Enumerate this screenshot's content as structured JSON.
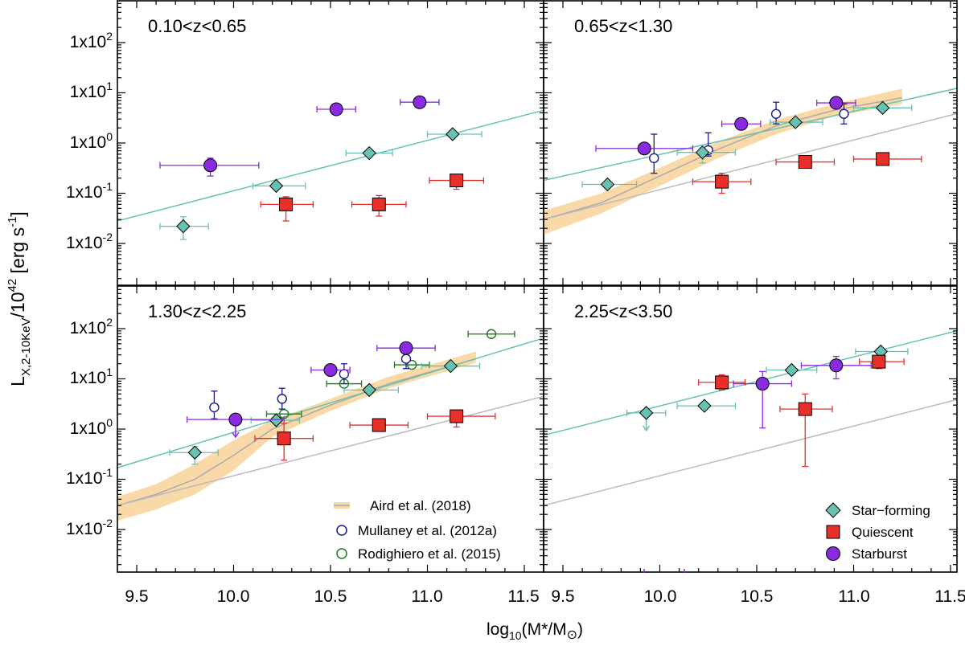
{
  "axes": {
    "xlabel_main": "log",
    "xlabel_sub": "10",
    "xlabel_rest": "(M",
    "xlabel_star": "*",
    "xlabel_slash": "/M",
    "xlabel_sun": "⊙",
    "xlabel_close": ")",
    "ylabel_L": "L",
    "ylabel_sub": "X,2-10KeV",
    "ylabel_mid": "/10",
    "ylabel_exp": "42",
    "ylabel_units": " [erg s",
    "ylabel_units_exp": "-1",
    "ylabel_close": "]",
    "x_ticks_left": [
      "9.5",
      "10.0",
      "10.5",
      "11.0",
      "11.5"
    ],
    "x_ticks_right": [
      "9.5",
      "10.0",
      "10.5",
      "11.0",
      "11.5"
    ],
    "y_ticks": [
      {
        "mant": "1x10",
        "exp": "-2"
      },
      {
        "mant": "1x10",
        "exp": "-1"
      },
      {
        "mant": "1x10",
        "exp": "0"
      },
      {
        "mant": "1x10",
        "exp": "1"
      },
      {
        "mant": "1x10",
        "exp": "2"
      }
    ]
  },
  "legend_left": {
    "aird": "Aird et al. (2018)",
    "mullaney": "Mullaney et al. (2012a)",
    "rodighiero": "Rodighiero et al. (2015)"
  },
  "legend_right": {
    "sf": "Star−forming",
    "q": "Quiescent",
    "sb": "Starburst"
  },
  "colors": {
    "star_forming": "#66c2b3",
    "quiescent": "#e8302a",
    "starburst": "#8a2be2",
    "mullaney": "#1a1a8c",
    "rodighiero": "#1e7a1e",
    "aird_band": "#fad9a8",
    "aird_line": "#aaaaaa",
    "ms_line": "#66c2b3",
    "gray_line": "#bbbbbb"
  },
  "chart_data": [
    {
      "type": "scatter",
      "title": "0.10<z<0.65",
      "xlim": [
        9.4,
        11.6
      ],
      "ylog10_lim": [
        -2.8,
        2.95
      ],
      "star_forming": [
        {
          "x": 9.74,
          "y": 0.022,
          "xerr": [
            0.12,
            0.13
          ],
          "ylo": 0.012,
          "yhi": 0.034
        },
        {
          "x": 10.22,
          "y": 0.14,
          "xerr": [
            0.12,
            0.15
          ]
        },
        {
          "x": 10.7,
          "y": 0.63,
          "xerr": [
            0.12,
            0.12
          ]
        },
        {
          "x": 11.13,
          "y": 1.5,
          "xerr": [
            0.13,
            0.15
          ]
        }
      ],
      "quiescent": [
        {
          "x": 10.27,
          "y": 0.06,
          "xerr": [
            0.13,
            0.14
          ],
          "ylo": 0.028,
          "yhi": 0.085
        },
        {
          "x": 10.75,
          "y": 0.06,
          "xerr": [
            0.14,
            0.14
          ],
          "ylo": 0.035,
          "yhi": 0.09
        },
        {
          "x": 11.15,
          "y": 0.18,
          "xerr": [
            0.14,
            0.14
          ],
          "ylo": 0.12,
          "yhi": 0.2
        }
      ],
      "starburst": [
        {
          "x": 9.88,
          "y": 0.36,
          "xerr": [
            0.26,
            0.25
          ],
          "ylo": 0.22,
          "yhi": 0.5
        },
        {
          "x": 10.53,
          "y": 4.7,
          "xerr": [
            0.1,
            0.1
          ]
        },
        {
          "x": 10.96,
          "y": 6.5,
          "xerr": [
            0.1,
            0.1
          ]
        }
      ],
      "ms_line": {
        "x": [
          9.4,
          11.6
        ],
        "y": [
          0.028,
          4.5
        ]
      }
    },
    {
      "type": "scatter",
      "title": "0.65<z<1.30",
      "xlim": [
        9.4,
        11.6
      ],
      "ylog10_lim": [
        -2.8,
        2.95
      ],
      "star_forming": [
        {
          "x": 9.73,
          "y": 0.15,
          "xerr": [
            0.13,
            0.15
          ]
        },
        {
          "x": 10.22,
          "y": 0.65,
          "xerr": [
            0.13,
            0.17
          ],
          "ylo": 0.4,
          "yhi": 0.8
        },
        {
          "x": 10.7,
          "y": 2.6,
          "xerr": [
            0.13,
            0.14
          ]
        },
        {
          "x": 11.15,
          "y": 5.0,
          "xerr": [
            0.15,
            0.15
          ]
        }
      ],
      "quiescent": [
        {
          "x": 10.32,
          "y": 0.17,
          "xerr": [
            0.15,
            0.15
          ],
          "ylo": 0.1,
          "yhi": 0.25
        },
        {
          "x": 10.75,
          "y": 0.42,
          "xerr": [
            0.15,
            0.15
          ]
        },
        {
          "x": 11.15,
          "y": 0.48,
          "xerr": [
            0.15,
            0.2
          ],
          "ylo": 0.38,
          "yhi": 0.52
        }
      ],
      "starburst": [
        {
          "x": 9.92,
          "y": 0.78,
          "xerr": [
            0.25,
            0.25
          ]
        },
        {
          "x": 10.42,
          "y": 2.4,
          "xerr": [
            0.1,
            0.1
          ]
        },
        {
          "x": 10.91,
          "y": 6.3,
          "xerr": [
            0.1,
            0.1
          ]
        }
      ],
      "mullaney": [
        {
          "x": 9.97,
          "y": 0.5,
          "ylo": 0.25,
          "yhi": 1.5
        },
        {
          "x": 10.25,
          "y": 0.72,
          "ylo": 0.55,
          "yhi": 1.6
        },
        {
          "x": 10.6,
          "y": 3.8,
          "ylo": 2.4,
          "yhi": 6.5
        },
        {
          "x": 10.95,
          "y": 3.8,
          "ylo": 2.4,
          "yhi": 6.0
        }
      ],
      "aird_line": {
        "x": [
          9.4,
          9.7,
          10.0,
          10.3,
          10.6,
          10.9,
          11.25
        ],
        "y": [
          0.03,
          0.065,
          0.22,
          0.75,
          2.2,
          4.5,
          8.0
        ]
      },
      "aird_band_lo": [
        0.015,
        0.04,
        0.14,
        0.5,
        1.5,
        3.4,
        6.0
      ],
      "aird_band_hi": [
        0.045,
        0.1,
        0.32,
        1.05,
        2.9,
        6.0,
        12.0
      ],
      "ms_line": {
        "x": [
          9.4,
          11.6
        ],
        "y": [
          0.18,
          14.0
        ]
      },
      "gray_line": {
        "x": [
          9.4,
          11.6
        ],
        "y": [
          0.03,
          4.5
        ]
      }
    },
    {
      "type": "scatter",
      "title": "1.30<z<2.25",
      "xlim": [
        9.4,
        11.6
      ],
      "ylog10_lim": [
        -2.8,
        2.95
      ],
      "star_forming": [
        {
          "x": 9.8,
          "y": 0.34,
          "xerr": [
            0.13,
            0.12
          ],
          "ylo": 0.2,
          "yhi": 0.45
        },
        {
          "x": 10.22,
          "y": 1.5,
          "xerr": [
            0.13,
            0.12
          ]
        },
        {
          "x": 10.7,
          "y": 6.0,
          "xerr": [
            0.13,
            0.15
          ]
        },
        {
          "x": 11.12,
          "y": 18.0,
          "xerr": [
            0.15,
            0.15
          ]
        }
      ],
      "quiescent": [
        {
          "x": 10.26,
          "y": 0.65,
          "xerr": [
            0.15,
            0.15
          ],
          "ylo": 0.24,
          "yhi": 1.3
        },
        {
          "x": 10.75,
          "y": 1.2,
          "xerr": [
            0.15,
            0.15
          ]
        },
        {
          "x": 11.15,
          "y": 1.8,
          "xerr": [
            0.15,
            0.2
          ],
          "ylo": 1.1,
          "yhi": 2.0
        }
      ],
      "starburst": [
        {
          "x": 10.01,
          "y": 1.55,
          "xerr": [
            0.25,
            0.25
          ],
          "upper_limit": true
        },
        {
          "x": 10.5,
          "y": 15.0,
          "xerr": [
            0.1,
            0.1
          ]
        },
        {
          "x": 10.89,
          "y": 41.0,
          "xerr": [
            0.15,
            0.15
          ]
        }
      ],
      "mullaney": [
        {
          "x": 9.9,
          "y": 2.7,
          "ylo": 1.6,
          "yhi": 5.7
        },
        {
          "x": 10.25,
          "y": 4.0,
          "ylo": 2.5,
          "yhi": 6.5
        },
        {
          "x": 10.57,
          "y": 12.5,
          "ylo": 8.0,
          "yhi": 20.0
        },
        {
          "x": 10.89,
          "y": 25.0,
          "ylo": 16.0,
          "yhi": 40.0
        }
      ],
      "rodighiero": [
        {
          "x": 10.26,
          "y": 2.0,
          "xerr": [
            0.09,
            0.09
          ]
        },
        {
          "x": 10.57,
          "y": 8.0,
          "xerr": [
            0.09,
            0.09
          ]
        },
        {
          "x": 10.92,
          "y": 19.0,
          "xerr": [
            0.09,
            0.09
          ]
        },
        {
          "x": 11.33,
          "y": 78.0,
          "xerr": [
            0.12,
            0.12
          ]
        }
      ],
      "aird_line": {
        "x": [
          9.4,
          9.6,
          9.8,
          10.0,
          10.2,
          10.5,
          10.8,
          11.25
        ],
        "y": [
          0.03,
          0.05,
          0.1,
          0.3,
          1.0,
          3.0,
          8.0,
          25.0
        ]
      },
      "aird_band_lo": [
        0.015,
        0.025,
        0.05,
        0.15,
        0.7,
        2.3,
        6.5,
        21.0
      ],
      "aird_band_hi": [
        0.045,
        0.08,
        0.2,
        0.6,
        1.5,
        4.0,
        11.0,
        35.0
      ],
      "ms_line": {
        "x": [
          9.4,
          11.6
        ],
        "y": [
          0.17,
          65.0
        ]
      },
      "gray_line": {
        "x": [
          9.4,
          11.6
        ],
        "y": [
          0.03,
          4.5
        ]
      }
    },
    {
      "type": "scatter",
      "title": "2.25<z<3.50",
      "xlim": [
        9.4,
        11.6
      ],
      "ylog10_lim": [
        -2.8,
        2.95
      ],
      "star_forming": [
        {
          "x": 9.93,
          "y": 2.1,
          "xerr": [
            0.1,
            0.1
          ],
          "upper_limit": true
        },
        {
          "x": 10.23,
          "y": 2.9,
          "xerr": [
            0.14,
            0.16
          ]
        },
        {
          "x": 10.68,
          "y": 15.0,
          "xerr": [
            0.13,
            0.13
          ]
        },
        {
          "x": 11.14,
          "y": 35.0,
          "xerr": [
            0.13,
            0.14
          ]
        }
      ],
      "quiescent": [
        {
          "x": 10.32,
          "y": 8.5,
          "xerr": [
            0.12,
            0.12
          ],
          "ylo": 6.0,
          "yhi": 12.0
        },
        {
          "x": 10.75,
          "y": 2.5,
          "xerr": [
            0.13,
            0.14
          ],
          "ylo": 0.18,
          "yhi": 5.0
        },
        {
          "x": 11.13,
          "y": 22.0,
          "xerr": [
            0.1,
            0.13
          ],
          "ylo": 16.0,
          "yhi": 28.0
        }
      ],
      "starburst": [
        {
          "x": 10.53,
          "y": 8.0,
          "xerr": [
            0.15,
            0.15
          ],
          "ylo": 1.05,
          "yhi": 14.0
        },
        {
          "x": 10.91,
          "y": 18.5,
          "xerr": [
            0.18,
            0.18
          ],
          "ylo": 10.0,
          "yhi": 28.0
        }
      ],
      "ms_line": {
        "x": [
          9.4,
          11.6
        ],
        "y": [
          0.75,
          105.0
        ]
      },
      "gray_line": {
        "x": [
          9.4,
          11.6
        ],
        "y": [
          0.03,
          4.5
        ]
      }
    }
  ]
}
